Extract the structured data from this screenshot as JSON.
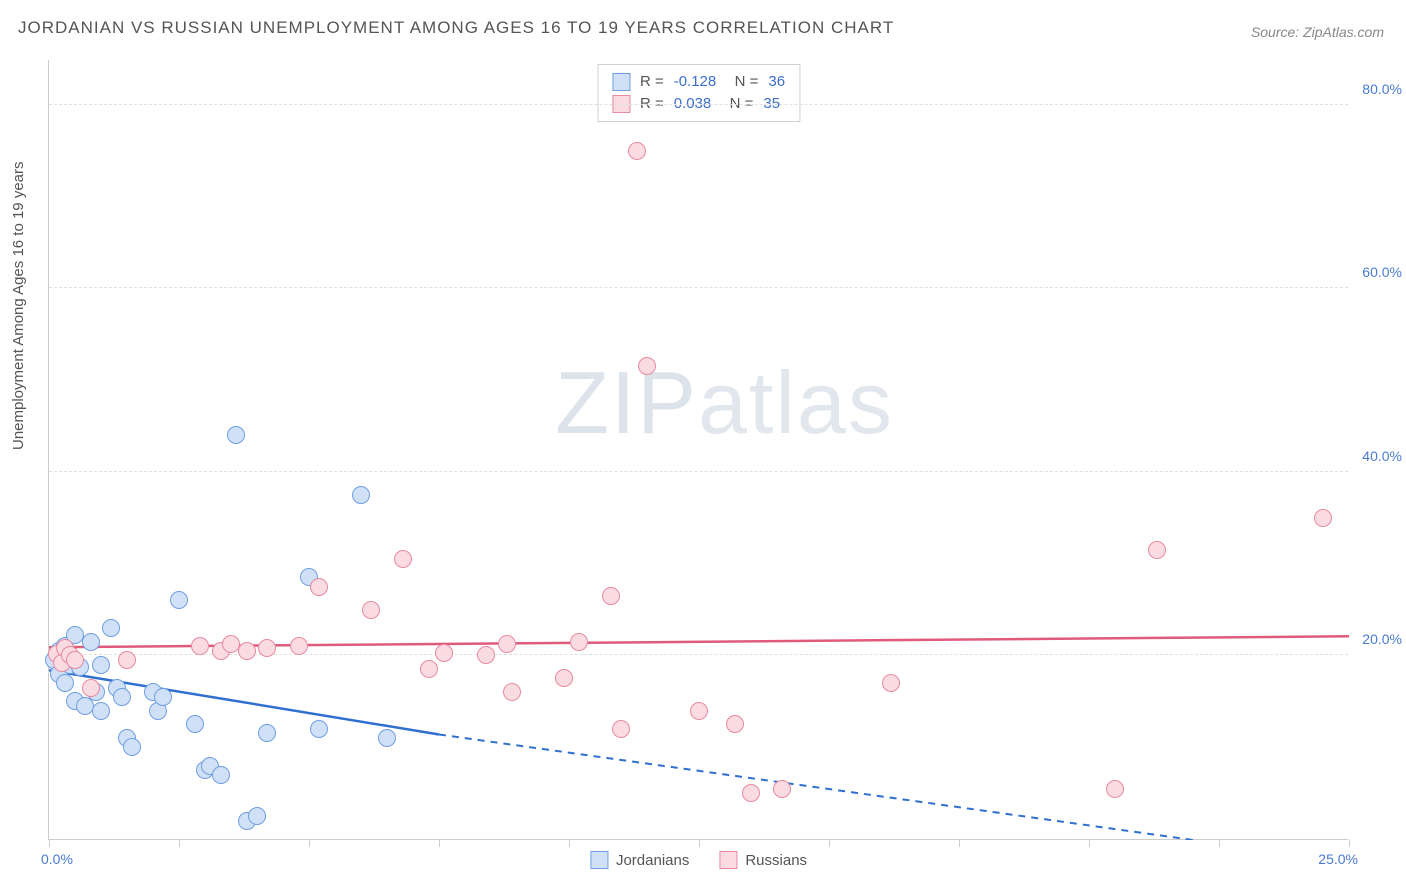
{
  "title": "JORDANIAN VS RUSSIAN UNEMPLOYMENT AMONG AGES 16 TO 19 YEARS CORRELATION CHART",
  "source": "Source: ZipAtlas.com",
  "y_axis_label": "Unemployment Among Ages 16 to 19 years",
  "watermark_bold": "ZIP",
  "watermark_thin": "atlas",
  "chart": {
    "type": "scatter",
    "xlim": [
      0,
      25
    ],
    "ylim": [
      0,
      85
    ],
    "x_ticks": [
      0,
      2.5,
      5,
      7.5,
      10,
      12.5,
      15,
      17.5,
      20,
      22.5,
      25
    ],
    "x_tick_labels_shown": {
      "0": "0.0%",
      "25": "25.0%"
    },
    "y_gridlines": [
      20,
      40,
      60,
      80
    ],
    "y_tick_labels": {
      "20": "20.0%",
      "40": "40.0%",
      "60": "60.0%",
      "80": "80.0%"
    },
    "background_color": "#ffffff",
    "grid_color": "#e0e0e0",
    "axis_color": "#cccccc",
    "tick_label_color": "#4a7bd0",
    "title_color": "#555555",
    "marker_radius": 9,
    "marker_border_width": 1.5,
    "series": [
      {
        "name": "Jordanians",
        "fill_color": "#cfe0f7",
        "border_color": "#6f9fe0",
        "trend_color": "#2f6fd0",
        "R": "-0.128",
        "N": "36",
        "trend": {
          "x1": 0,
          "y1": 18.5,
          "x2_solid": 7.5,
          "y2_solid": 11.5,
          "x2": 22,
          "y2": 0
        },
        "points": [
          [
            0.1,
            19.5
          ],
          [
            0.2,
            20.5
          ],
          [
            0.2,
            18.0
          ],
          [
            0.3,
            21.0
          ],
          [
            0.3,
            17.0
          ],
          [
            0.35,
            20.0
          ],
          [
            0.4,
            19.0
          ],
          [
            0.5,
            22.2
          ],
          [
            0.5,
            15.0
          ],
          [
            0.6,
            18.7
          ],
          [
            0.7,
            14.5
          ],
          [
            0.8,
            21.5
          ],
          [
            0.9,
            16.0
          ],
          [
            1.0,
            19.0
          ],
          [
            1.0,
            14.0
          ],
          [
            1.2,
            23.0
          ],
          [
            1.3,
            16.5
          ],
          [
            1.4,
            15.5
          ],
          [
            1.5,
            11.0
          ],
          [
            1.6,
            10.0
          ],
          [
            2.0,
            16.0
          ],
          [
            2.1,
            14.0
          ],
          [
            2.2,
            15.5
          ],
          [
            2.5,
            26.0
          ],
          [
            2.8,
            12.5
          ],
          [
            3.0,
            7.5
          ],
          [
            3.1,
            8.0
          ],
          [
            3.3,
            7.0
          ],
          [
            3.6,
            44.0
          ],
          [
            3.8,
            2.0
          ],
          [
            4.0,
            2.5
          ],
          [
            4.2,
            11.5
          ],
          [
            5.0,
            28.5
          ],
          [
            5.2,
            12.0
          ],
          [
            6.0,
            37.5
          ],
          [
            6.5,
            11.0
          ]
        ]
      },
      {
        "name": "Russians",
        "fill_color": "#fadbe2",
        "border_color": "#e88aa0",
        "trend_color": "#e05a7b",
        "R": "0.038",
        "N": "35",
        "trend": {
          "x1": 0,
          "y1": 21.0,
          "x2_solid": 25,
          "y2_solid": 22.2,
          "x2": 25,
          "y2": 22.2
        },
        "points": [
          [
            0.15,
            20.2
          ],
          [
            0.25,
            19.2
          ],
          [
            0.3,
            20.8
          ],
          [
            0.4,
            20.0
          ],
          [
            0.5,
            19.5
          ],
          [
            0.8,
            16.5
          ],
          [
            1.5,
            19.5
          ],
          [
            2.9,
            21.0
          ],
          [
            3.3,
            20.5
          ],
          [
            3.5,
            21.2
          ],
          [
            3.8,
            20.5
          ],
          [
            4.2,
            20.8
          ],
          [
            4.8,
            21.0
          ],
          [
            5.2,
            27.5
          ],
          [
            6.2,
            25.0
          ],
          [
            6.8,
            30.5
          ],
          [
            7.3,
            18.5
          ],
          [
            7.6,
            20.3
          ],
          [
            8.4,
            20.0
          ],
          [
            8.8,
            21.3
          ],
          [
            8.9,
            16.0
          ],
          [
            9.9,
            17.5
          ],
          [
            10.2,
            21.5
          ],
          [
            10.8,
            26.5
          ],
          [
            11.3,
            75.0
          ],
          [
            11.0,
            12.0
          ],
          [
            11.5,
            51.5
          ],
          [
            12.5,
            14.0
          ],
          [
            13.2,
            12.5
          ],
          [
            13.5,
            5.0
          ],
          [
            14.1,
            5.5
          ],
          [
            16.2,
            17.0
          ],
          [
            20.5,
            5.5
          ],
          [
            21.3,
            31.5
          ],
          [
            24.5,
            35.0
          ]
        ]
      }
    ]
  },
  "legend_bottom": [
    {
      "label": "Jordanians",
      "fill": "#cfe0f7",
      "border": "#6f9fe0"
    },
    {
      "label": "Russians",
      "fill": "#fadbe2",
      "border": "#e88aa0"
    }
  ]
}
